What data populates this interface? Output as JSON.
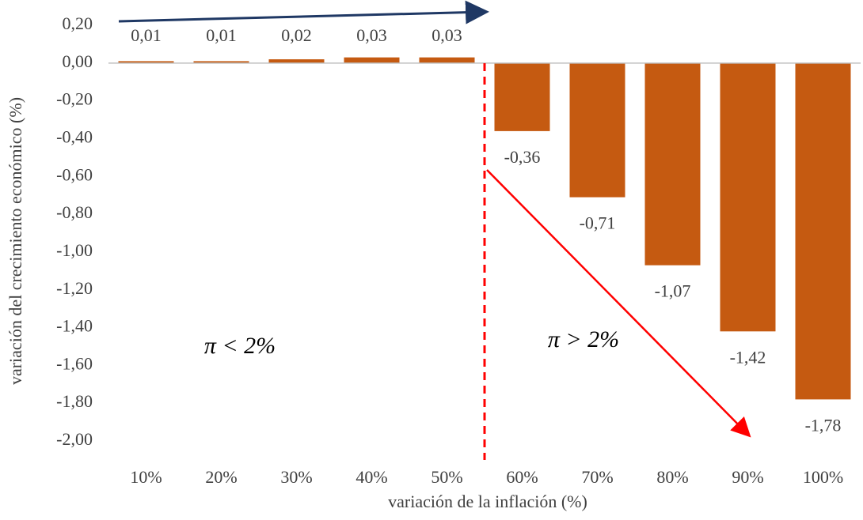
{
  "chart_data": {
    "type": "bar",
    "x_label": "variación de la inflación (%)",
    "y_label": "variación del crecimiento económico (%)",
    "categories": [
      "10%",
      "20%",
      "30%",
      "40%",
      "50%",
      "60%",
      "70%",
      "80%",
      "90%",
      "100%"
    ],
    "values": [
      0.01,
      0.01,
      0.02,
      0.03,
      0.03,
      -0.36,
      -0.71,
      -1.07,
      -1.42,
      -1.78
    ],
    "value_labels": [
      "0,01",
      "0,01",
      "0,02",
      "0,03",
      "0,03",
      "-0,36",
      "-0,71",
      "-1,07",
      "-1,42",
      "-1,78"
    ],
    "color": "#c55a11",
    "ylim": [
      -2.0,
      0.2
    ],
    "yticks": [
      {
        "value": 0.2,
        "label": "0,20"
      },
      {
        "value": 0.0,
        "label": "0,00"
      },
      {
        "value": -0.2,
        "label": "-0,20"
      },
      {
        "value": -0.4,
        "label": "-0,40"
      },
      {
        "value": -0.6,
        "label": "-0,60"
      },
      {
        "value": -0.8,
        "label": "-0,80"
      },
      {
        "value": -1.0,
        "label": "-1,00"
      },
      {
        "value": -1.2,
        "label": "-1,20"
      },
      {
        "value": -1.4,
        "label": "-1,40"
      },
      {
        "value": -1.6,
        "label": "-1,60"
      },
      {
        "value": -1.8,
        "label": "-1,80"
      },
      {
        "value": -2.0,
        "label": "-2,00"
      }
    ],
    "grid": false,
    "annotations": [
      "π < 2%",
      "π > 2%"
    ]
  }
}
